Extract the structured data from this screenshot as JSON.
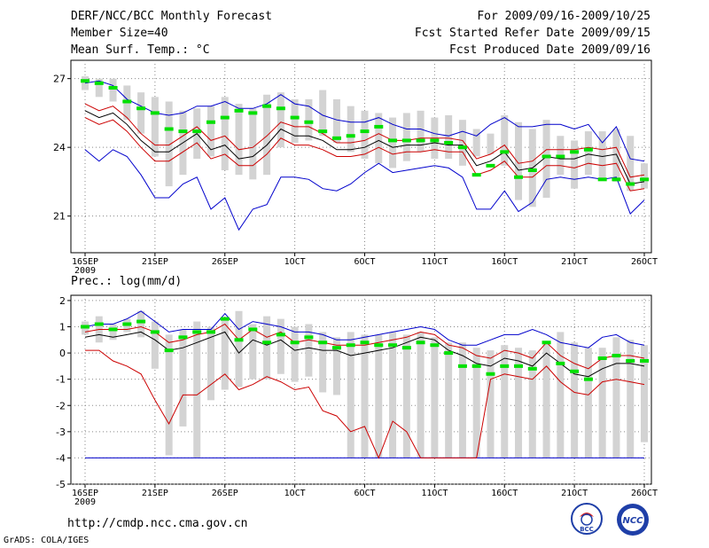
{
  "header": {
    "title": "DERF/NCC/BCC Monthly Forecast",
    "member_size": "Member Size=40",
    "variable": "Mean Surf. Temp.: °C",
    "period": "For 2009/09/16-2009/10/25",
    "started": "Fcst Started Refer Date 2009/09/15",
    "produced": "Fcst Produced Date 2009/09/16"
  },
  "footer": {
    "url": "http://cmdp.ncc.cma.gov.cn",
    "credit": "GrADS: COLA/IGES",
    "logo_bcc": "BCC",
    "logo_ncc": "NCC"
  },
  "colors": {
    "box": "#d3d3d3",
    "median": "#00e000",
    "envelope": "#0000cc",
    "spread": "#cc0000",
    "mean": "#000000",
    "grid": "#888888"
  },
  "chart_data": [
    {
      "type": "line",
      "title": "Mean Surf. Temp.: °C",
      "x_tick_labels": [
        "16SEP",
        "21SEP",
        "26SEP",
        "1OCT",
        "6OCT",
        "11OCT",
        "16OCT",
        "21OCT",
        "26OCT"
      ],
      "x_year_label": "2009",
      "x_day_range": [
        0,
        40
      ],
      "y_ticks": [
        21,
        24,
        27
      ],
      "ylim": [
        19.4,
        27.8
      ],
      "series": [
        {
          "name": "box_top",
          "values": [
            27.1,
            27,
            27,
            26.7,
            26.4,
            26.2,
            26,
            25.6,
            25.7,
            25.8,
            26.2,
            25.9,
            25.7,
            26.3,
            26.4,
            26.1,
            26.1,
            26.5,
            26.1,
            25.8,
            25.6,
            25.5,
            25.3,
            25.5,
            25.6,
            25.3,
            25.4,
            25.2,
            24.8,
            24.6,
            25.4,
            25.1,
            24.8,
            25.2,
            24.5,
            24.3,
            24.7,
            24.7,
            24.8,
            24.5,
            23.3
          ]
        },
        {
          "name": "box_bottom",
          "values": [
            26.5,
            26.2,
            26,
            25.2,
            24.6,
            23.6,
            22.3,
            22.8,
            23.5,
            23.6,
            23,
            22.8,
            22.6,
            22.8,
            24,
            24.2,
            24.3,
            24.5,
            24.2,
            23.8,
            23.5,
            23.3,
            23.1,
            23.4,
            23.8,
            23.5,
            23.5,
            23.2,
            23.6,
            23.7,
            23.2,
            21.7,
            21.4,
            21.8,
            22.8,
            22.2,
            22.8,
            22.6,
            22.5,
            22.1,
            22.2
          ]
        },
        {
          "name": "median",
          "values": [
            26.9,
            26.8,
            26.6,
            26,
            25.7,
            25.5,
            24.8,
            24.7,
            24.7,
            25.1,
            25.3,
            25.6,
            25.5,
            25.8,
            25.7,
            25.3,
            25.1,
            24.7,
            24.4,
            24.5,
            24.7,
            24.9,
            24.3,
            24.3,
            24.3,
            24.3,
            24.2,
            24,
            22.8,
            23.2,
            23.8,
            22.7,
            23,
            23.6,
            23.6,
            23.8,
            23.9,
            22.6,
            22.6,
            22.4,
            22.6
          ]
        },
        {
          "name": "envelope_max",
          "values": [
            26.8,
            26.9,
            26.7,
            26.1,
            25.8,
            25.5,
            25.4,
            25.5,
            25.8,
            25.8,
            26,
            25.7,
            25.7,
            25.9,
            26.3,
            25.9,
            25.8,
            25.4,
            25.2,
            25.1,
            25.1,
            25.3,
            25,
            24.8,
            24.8,
            24.6,
            24.5,
            24.7,
            24.5,
            25,
            25.3,
            24.9,
            24.9,
            25,
            25,
            24.8,
            25,
            24.2,
            24.9,
            23.5,
            23.4
          ]
        },
        {
          "name": "envelope_min",
          "values": [
            23.9,
            23.4,
            23.9,
            23.6,
            22.8,
            21.8,
            21.8,
            22.4,
            22.7,
            21.3,
            21.8,
            20.4,
            21.3,
            21.5,
            22.7,
            22.7,
            22.6,
            22.2,
            22.1,
            22.4,
            22.9,
            23.3,
            22.9,
            23,
            23.1,
            23.2,
            23.1,
            22.7,
            21.3,
            21.3,
            22.1,
            21.2,
            21.6,
            22.6,
            22.7,
            22.6,
            22.7,
            22.6,
            22.7,
            21.1,
            21.7
          ]
        },
        {
          "name": "spread_upper",
          "values": [
            25.9,
            25.6,
            25.8,
            25.3,
            24.6,
            24.1,
            24.1,
            24.5,
            24.9,
            24.3,
            24.5,
            23.9,
            24,
            24.5,
            25.1,
            24.9,
            24.9,
            24.6,
            24.2,
            24.2,
            24.3,
            24.6,
            24.3,
            24.3,
            24.4,
            24.4,
            24.4,
            24.3,
            23.5,
            23.7,
            24.1,
            23.3,
            23.4,
            23.9,
            23.9,
            23.9,
            24,
            23.9,
            24,
            22.7,
            22.8
          ]
        },
        {
          "name": "mean",
          "values": [
            25.6,
            25.3,
            25.5,
            25,
            24.3,
            23.8,
            23.8,
            24.2,
            24.6,
            23.9,
            24.1,
            23.5,
            23.6,
            24.1,
            24.8,
            24.5,
            24.5,
            24.3,
            23.9,
            23.9,
            24,
            24.3,
            24,
            24.1,
            24.1,
            24.2,
            24.1,
            24.1,
            23.2,
            23.4,
            23.8,
            23,
            23.1,
            23.6,
            23.5,
            23.5,
            23.7,
            23.6,
            23.7,
            22.4,
            22.5
          ]
        },
        {
          "name": "spread_lower",
          "values": [
            25.3,
            25,
            25.2,
            24.7,
            24,
            23.4,
            23.4,
            23.8,
            24.2,
            23.5,
            23.7,
            23.2,
            23.2,
            23.7,
            24.4,
            24.1,
            24.1,
            23.9,
            23.6,
            23.6,
            23.7,
            24,
            23.7,
            23.8,
            23.8,
            23.9,
            23.8,
            23.8,
            22.8,
            23,
            23.4,
            22.7,
            22.7,
            23.2,
            23.2,
            23.1,
            23.3,
            23.2,
            23.3,
            22.1,
            22.2
          ]
        }
      ]
    },
    {
      "type": "line",
      "title": "Prec.: log(mm/d)",
      "x_tick_labels": [
        "16SEP",
        "21SEP",
        "26SEP",
        "1OCT",
        "6OCT",
        "11OCT",
        "16OCT",
        "21OCT",
        "26OCT"
      ],
      "x_year_label": "2009",
      "x_day_range": [
        0,
        40
      ],
      "y_ticks": [
        -5,
        -4,
        -3,
        -2,
        -1,
        0,
        1,
        2
      ],
      "ylim": [
        -5,
        2.2
      ],
      "series": [
        {
          "name": "box_top",
          "values": [
            1.2,
            1.4,
            1.1,
            1.3,
            1.6,
            1.2,
            0.7,
            0.9,
            1.2,
            1,
            1.3,
            1.6,
            1.1,
            1.4,
            1.3,
            1,
            1.1,
            0.8,
            0.6,
            0.8,
            0.7,
            0.7,
            0.8,
            0.7,
            0.8,
            0.6,
            0.4,
            0.4,
            0.2,
            0.1,
            0.3,
            0.2,
            0.1,
            0.4,
            0.8,
            0.4,
            0.2,
            0.2,
            0.6,
            0.5,
            0.3
          ]
        },
        {
          "name": "box_bottom",
          "values": [
            0.7,
            0.4,
            0.5,
            0.8,
            0.6,
            -0.6,
            -3.9,
            -2.8,
            -4,
            -1.8,
            -1.4,
            -1.3,
            -1,
            -1,
            -0.8,
            -1.1,
            -0.9,
            -1.5,
            -1.6,
            -4,
            -4,
            -4,
            -4,
            -4,
            -4,
            -4,
            -4,
            -4,
            -4,
            -4,
            -4,
            -4,
            -4,
            -4,
            -4,
            -4,
            -4,
            -4,
            -4,
            -4,
            -3.4
          ]
        },
        {
          "name": "median",
          "values": [
            1,
            1.1,
            0.9,
            1.1,
            1.2,
            0.8,
            0.1,
            0.6,
            0.8,
            0.8,
            1.3,
            0.5,
            0.9,
            0.4,
            0.7,
            0.4,
            0.6,
            0.4,
            0.2,
            0.3,
            0.4,
            0.3,
            0.3,
            0.2,
            0.4,
            0.3,
            0,
            -0.5,
            -0.5,
            -0.8,
            -0.5,
            -0.5,
            -0.6,
            0.4,
            -0.4,
            -0.7,
            -1,
            -0.2,
            -0.1,
            -0.3,
            -0.3
          ]
        },
        {
          "name": "envelope_max",
          "values": [
            1,
            1.1,
            1.1,
            1.3,
            1.6,
            1.2,
            0.8,
            0.9,
            0.9,
            0.9,
            1.5,
            0.9,
            1.2,
            1.1,
            1,
            0.8,
            0.8,
            0.7,
            0.5,
            0.5,
            0.6,
            0.7,
            0.8,
            0.9,
            1,
            0.9,
            0.5,
            0.3,
            0.3,
            0.5,
            0.7,
            0.7,
            0.9,
            0.7,
            0.4,
            0.3,
            0.2,
            0.6,
            0.7,
            0.4,
            0.3
          ]
        },
        {
          "name": "envelope_min",
          "values": [
            -4,
            -4,
            -4,
            -4,
            -4,
            -4,
            -4,
            -4,
            -4,
            -4,
            -4,
            -4,
            -4,
            -4,
            -4,
            -4,
            -4,
            -4,
            -4,
            -4,
            -4,
            -4,
            -4,
            -4,
            -4,
            -4,
            -4,
            -4,
            -4,
            -4,
            -4,
            -4,
            -4,
            -4,
            -4,
            -4,
            -4,
            -4,
            -4,
            -4,
            -4
          ]
        },
        {
          "name": "spread_upper",
          "values": [
            0.8,
            0.9,
            0.9,
            0.9,
            1,
            0.8,
            0.4,
            0.5,
            0.7,
            0.8,
            1.1,
            0.5,
            0.9,
            0.6,
            0.8,
            0.4,
            0.5,
            0.4,
            0.3,
            0.3,
            0.3,
            0.4,
            0.5,
            0.6,
            0.8,
            0.7,
            0.3,
            0.2,
            -0.1,
            -0.2,
            0.1,
            0,
            -0.2,
            0.4,
            -0.1,
            -0.4,
            -0.6,
            -0.2,
            -0.1,
            -0.1,
            -0.2
          ]
        },
        {
          "name": "mean",
          "values": [
            0.6,
            0.7,
            0.6,
            0.7,
            0.8,
            0.5,
            0.1,
            0.2,
            0.4,
            0.6,
            0.8,
            0,
            0.5,
            0.3,
            0.5,
            0.1,
            0.2,
            0.1,
            0.1,
            -0.1,
            0,
            0.1,
            0.2,
            0.4,
            0.6,
            0.5,
            0.1,
            -0.1,
            -0.4,
            -0.5,
            -0.2,
            -0.3,
            -0.5,
            0,
            -0.4,
            -0.8,
            -0.9,
            -0.6,
            -0.4,
            -0.4,
            -0.5
          ]
        },
        {
          "name": "spread_lower",
          "values": [
            0.1,
            0.1,
            -0.3,
            -0.5,
            -0.8,
            -1.8,
            -2.7,
            -1.6,
            -1.6,
            -1.2,
            -0.8,
            -1.4,
            -1.2,
            -0.9,
            -1.1,
            -1.4,
            -1.3,
            -2.2,
            -2.4,
            -3,
            -2.8,
            -4,
            -2.6,
            -3,
            -4,
            -4,
            -4,
            -4,
            -4,
            -1,
            -0.8,
            -0.9,
            -1,
            -0.5,
            -1.1,
            -1.5,
            -1.6,
            -1.1,
            -1,
            -1.1,
            -1.2
          ]
        }
      ]
    }
  ]
}
